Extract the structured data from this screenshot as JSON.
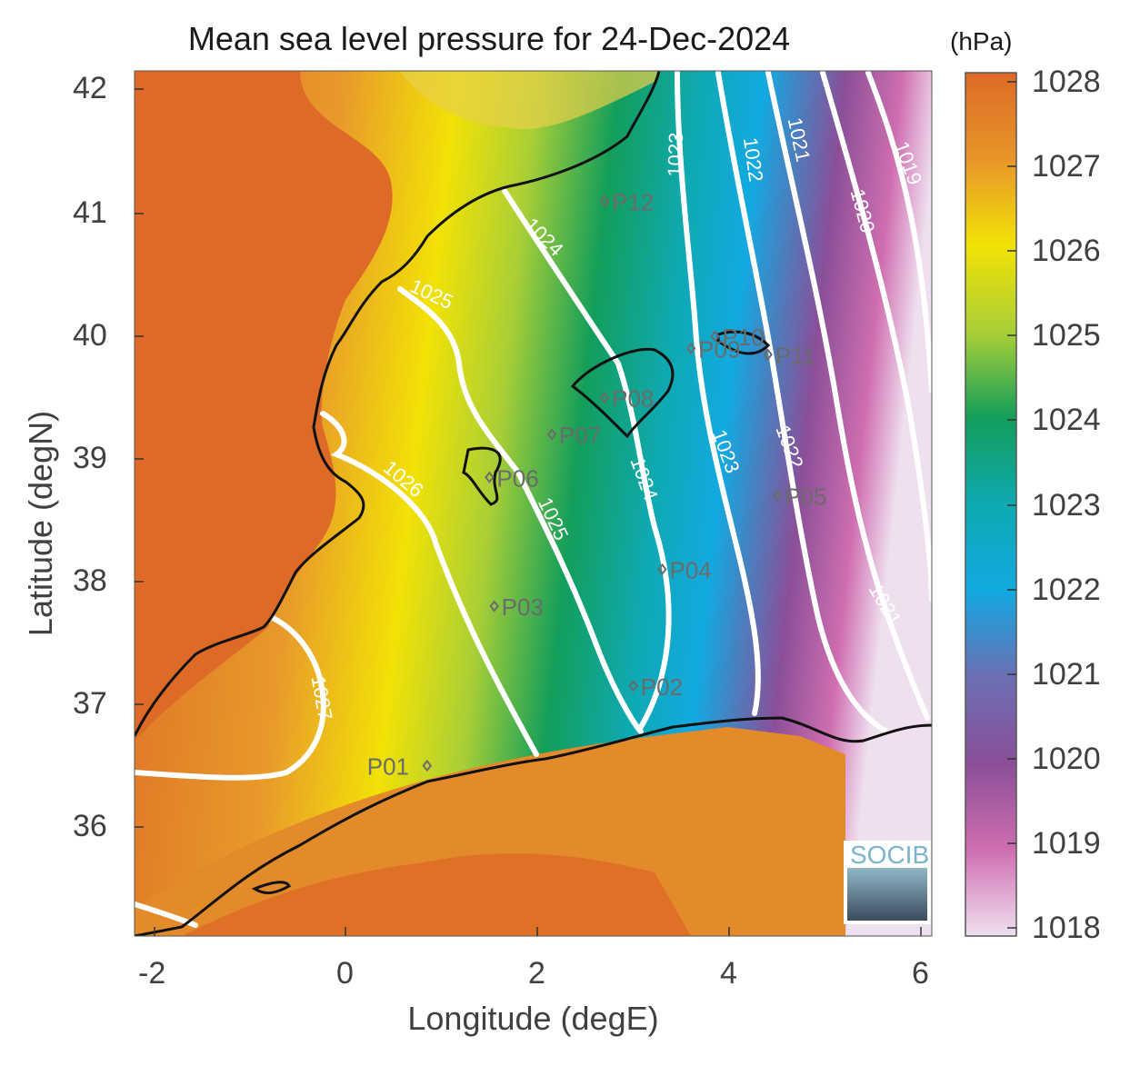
{
  "map": {
    "title": "Mean sea level pressure for 24-Dec-2024",
    "xlabel": "Longitude (degE)",
    "ylabel": "Latitude (degN)",
    "x_ticks": [
      "-2",
      "0",
      "2",
      "4",
      "6"
    ],
    "y_ticks": [
      "42",
      "41",
      "40",
      "39",
      "38",
      "37",
      "36"
    ],
    "logo_text": "SOCIB"
  },
  "colorbar": {
    "units": "(hPa)",
    "labels": [
      "1028",
      "1027",
      "1026",
      "1025",
      "1024",
      "1023",
      "1022",
      "1021",
      "1020",
      "1019",
      "1018"
    ],
    "colors": [
      "#dd6a26",
      "#e8952a",
      "#f2e206",
      "#a9cf36",
      "#139e5a",
      "#0fa9b2",
      "#12a9e1",
      "#6c6fb4",
      "#8a4f98",
      "#cf6eb0",
      "#efe0ef"
    ]
  },
  "contours": [
    {
      "label": "1019"
    },
    {
      "label": "1020"
    },
    {
      "label": "1021"
    },
    {
      "label": "1022"
    },
    {
      "label": "1023"
    },
    {
      "label": "1024"
    },
    {
      "label": "1025"
    },
    {
      "label": "1026"
    },
    {
      "label": "1027"
    }
  ],
  "stations": [
    {
      "id": "P01",
      "lon": 0.85,
      "lat": 36.5
    },
    {
      "id": "P02",
      "lon": 3.0,
      "lat": 37.15
    },
    {
      "id": "P03",
      "lon": 1.55,
      "lat": 37.8
    },
    {
      "id": "P04",
      "lon": 3.3,
      "lat": 38.1
    },
    {
      "id": "P05",
      "lon": 4.5,
      "lat": 38.7
    },
    {
      "id": "P06",
      "lon": 1.5,
      "lat": 38.85
    },
    {
      "id": "P07",
      "lon": 2.15,
      "lat": 39.2
    },
    {
      "id": "P08",
      "lon": 2.7,
      "lat": 39.5
    },
    {
      "id": "P09",
      "lon": 3.6,
      "lat": 39.9
    },
    {
      "id": "P10",
      "lon": 3.85,
      "lat": 40.0
    },
    {
      "id": "P11",
      "lon": 4.4,
      "lat": 39.85
    },
    {
      "id": "P12",
      "lon": 2.7,
      "lat": 41.1
    }
  ]
}
